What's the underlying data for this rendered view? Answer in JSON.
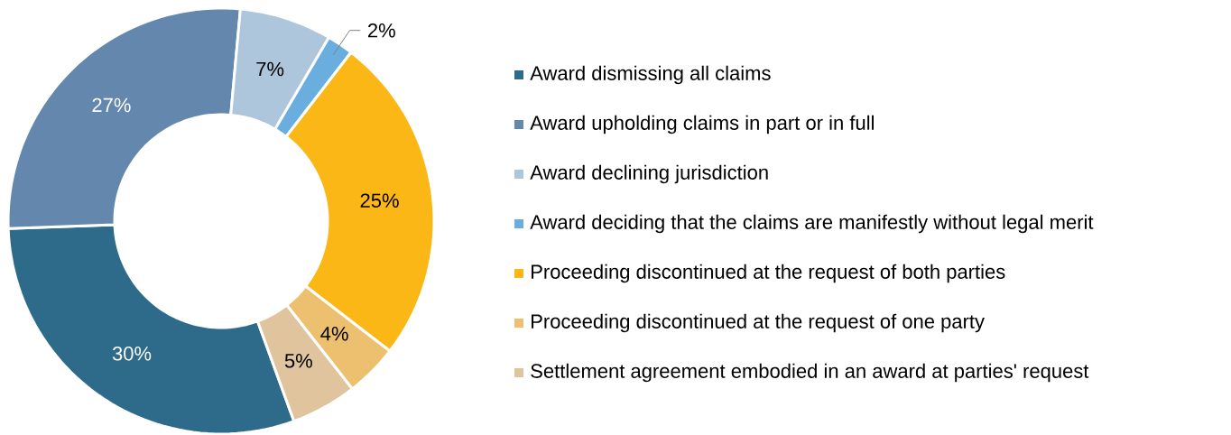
{
  "chart_data": {
    "type": "donut",
    "categories": [
      "Award dismissing all claims",
      "Award upholding claims in part or in full",
      "Award declining jurisdiction",
      "Award deciding that the claims are manifestly without legal merit",
      "Proceeding discontinued at the request of both parties",
      "Proceeding discontinued at the request of one party",
      "Settlement agreement embodied in an award at parties' request"
    ],
    "values": [
      30,
      27,
      7,
      2,
      25,
      4,
      5
    ],
    "colors": [
      "#2e6a8a",
      "#6488ad",
      "#adc6dc",
      "#6aaee0",
      "#fbb715",
      "#edc070",
      "#e0c49d"
    ],
    "value_labels": [
      "30%",
      "27%",
      "7%",
      "2%",
      "25%",
      "4%",
      "5%"
    ],
    "legend": "right"
  }
}
